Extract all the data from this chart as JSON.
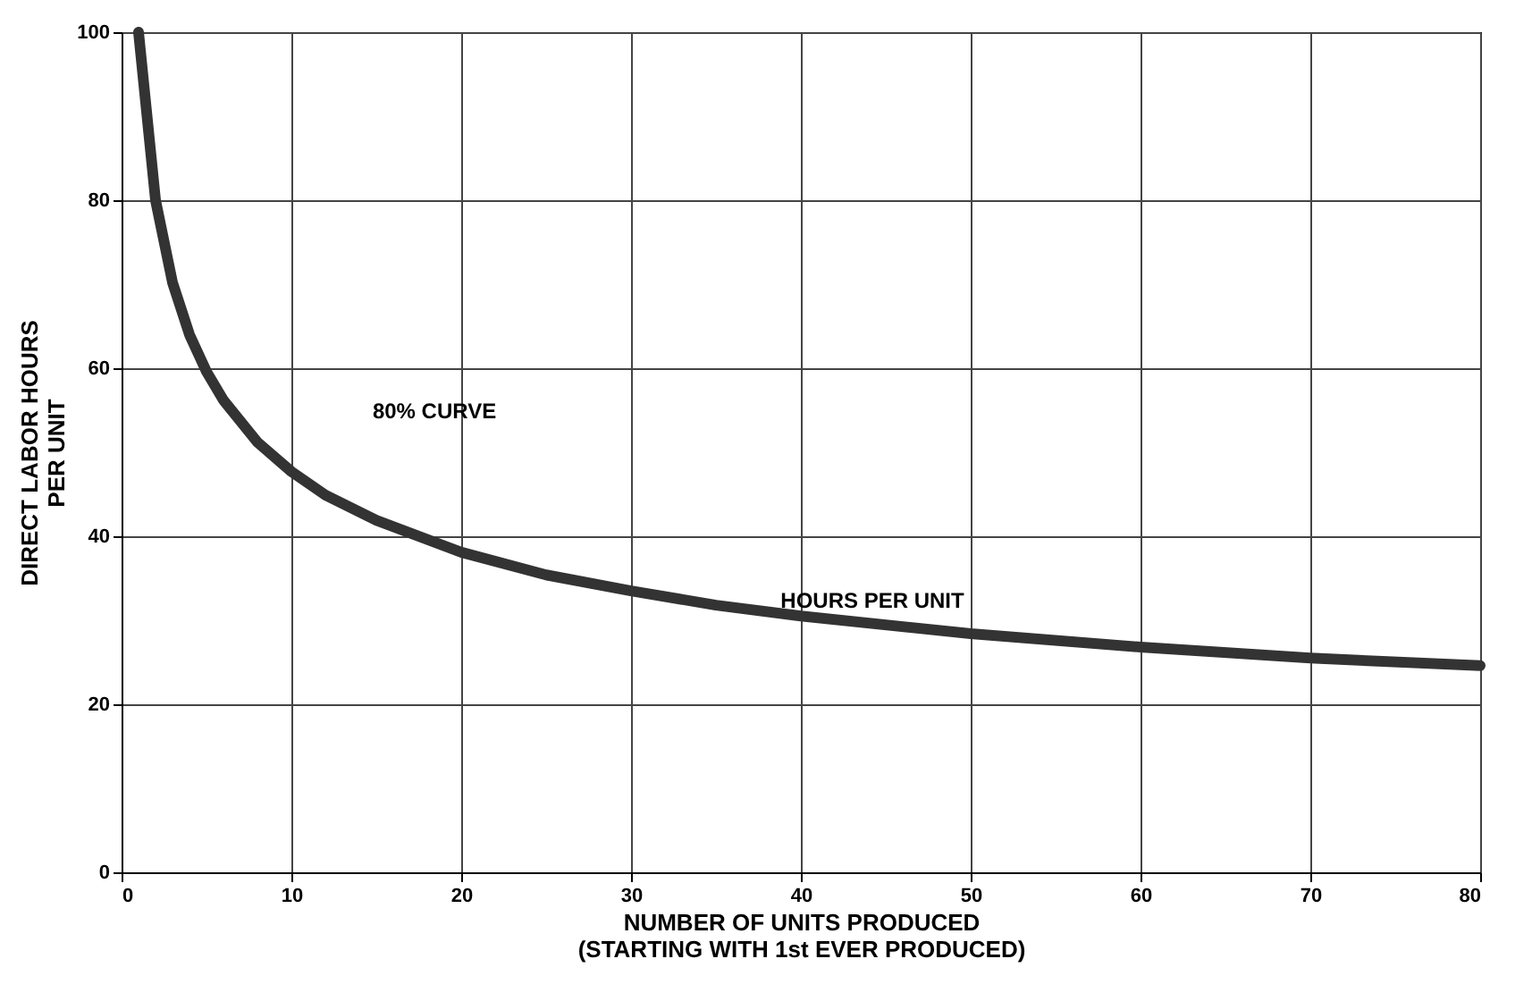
{
  "chart_data": {
    "type": "line",
    "xlabel": "NUMBER OF UNITS PRODUCED\n(STARTING WITH 1st EVER PRODUCED)",
    "ylabel": "DIRECT LABOR HOURS\nPER UNIT",
    "x": [
      1,
      2,
      3,
      4,
      5,
      6,
      8,
      10,
      12,
      15,
      20,
      25,
      30,
      35,
      40,
      50,
      60,
      70,
      80
    ],
    "series": [
      {
        "color": "#333333",
        "values": [
          100,
          80,
          70.2,
          64,
          59.6,
          56.2,
          51.2,
          47.7,
          44.9,
          41.9,
          38.1,
          35.4,
          33.5,
          31.8,
          30.5,
          28.4,
          26.8,
          25.5,
          24.6
        ]
      }
    ],
    "xlim": [
      0,
      80
    ],
    "ylim": [
      0,
      100
    ],
    "xticks": [
      0,
      10,
      20,
      30,
      40,
      50,
      60,
      70,
      80
    ],
    "yticks": [
      0,
      20,
      40,
      60,
      80,
      100
    ],
    "grid": true,
    "annotations": [
      "80% CURVE",
      "HOURS PER UNIT"
    ]
  }
}
